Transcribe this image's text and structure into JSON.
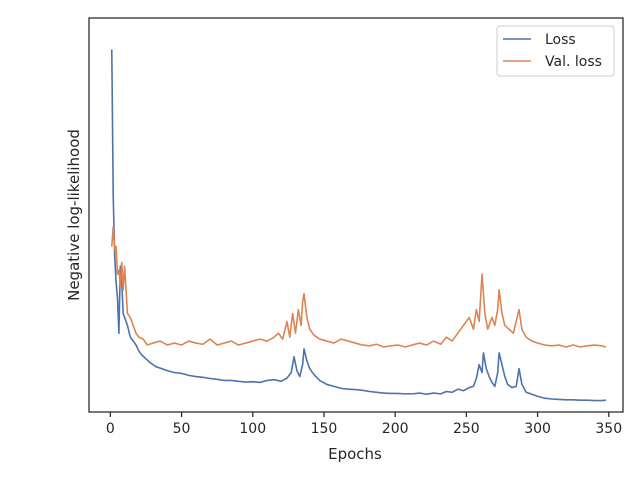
{
  "chart_data": {
    "type": "line",
    "xlabel": "Epochs",
    "ylabel": "Negative log-likelihood",
    "xlim": [
      -15,
      360
    ],
    "ylim": [
      0,
      1
    ],
    "x_ticks": [
      0,
      50,
      100,
      150,
      200,
      250,
      300,
      350
    ],
    "y_tick_labels_shown": false,
    "grid": false,
    "legend_position": "top-right",
    "series": [
      {
        "name": "Loss",
        "color": "#4c72b0",
        "points": [
          [
            1,
            0.92
          ],
          [
            2,
            0.55
          ],
          [
            3,
            0.4
          ],
          [
            4,
            0.33
          ],
          [
            5,
            0.29
          ],
          [
            6,
            0.2
          ],
          [
            7,
            0.37
          ],
          [
            8,
            0.33
          ],
          [
            9,
            0.25
          ],
          [
            10,
            0.24
          ],
          [
            12,
            0.22
          ],
          [
            14,
            0.19
          ],
          [
            16,
            0.18
          ],
          [
            18,
            0.17
          ],
          [
            20,
            0.155
          ],
          [
            22,
            0.145
          ],
          [
            25,
            0.135
          ],
          [
            28,
            0.125
          ],
          [
            32,
            0.115
          ],
          [
            36,
            0.11
          ],
          [
            40,
            0.105
          ],
          [
            45,
            0.1
          ],
          [
            50,
            0.098
          ],
          [
            55,
            0.093
          ],
          [
            60,
            0.09
          ],
          [
            65,
            0.088
          ],
          [
            70,
            0.085
          ],
          [
            75,
            0.083
          ],
          [
            80,
            0.08
          ],
          [
            85,
            0.08
          ],
          [
            90,
            0.078
          ],
          [
            95,
            0.076
          ],
          [
            100,
            0.077
          ],
          [
            105,
            0.075
          ],
          [
            110,
            0.08
          ],
          [
            115,
            0.082
          ],
          [
            120,
            0.078
          ],
          [
            124,
            0.086
          ],
          [
            127,
            0.1
          ],
          [
            129,
            0.14
          ],
          [
            131,
            0.105
          ],
          [
            133,
            0.09
          ],
          [
            135,
            0.12
          ],
          [
            136,
            0.16
          ],
          [
            138,
            0.13
          ],
          [
            140,
            0.11
          ],
          [
            143,
            0.095
          ],
          [
            147,
            0.08
          ],
          [
            152,
            0.07
          ],
          [
            157,
            0.065
          ],
          [
            162,
            0.06
          ],
          [
            167,
            0.058
          ],
          [
            172,
            0.057
          ],
          [
            177,
            0.055
          ],
          [
            182,
            0.052
          ],
          [
            187,
            0.05
          ],
          [
            192,
            0.048
          ],
          [
            197,
            0.047
          ],
          [
            202,
            0.047
          ],
          [
            207,
            0.046
          ],
          [
            212,
            0.046
          ],
          [
            217,
            0.048
          ],
          [
            222,
            0.045
          ],
          [
            227,
            0.048
          ],
          [
            232,
            0.046
          ],
          [
            236,
            0.052
          ],
          [
            240,
            0.05
          ],
          [
            244,
            0.058
          ],
          [
            248,
            0.054
          ],
          [
            252,
            0.062
          ],
          [
            255,
            0.065
          ],
          [
            257,
            0.085
          ],
          [
            259,
            0.12
          ],
          [
            261,
            0.1
          ],
          [
            262,
            0.15
          ],
          [
            264,
            0.11
          ],
          [
            266,
            0.09
          ],
          [
            268,
            0.075
          ],
          [
            270,
            0.065
          ],
          [
            272,
            0.1
          ],
          [
            273,
            0.15
          ],
          [
            275,
            0.12
          ],
          [
            277,
            0.09
          ],
          [
            279,
            0.07
          ],
          [
            282,
            0.062
          ],
          [
            285,
            0.065
          ],
          [
            287,
            0.11
          ],
          [
            289,
            0.07
          ],
          [
            292,
            0.05
          ],
          [
            296,
            0.045
          ],
          [
            300,
            0.04
          ],
          [
            305,
            0.035
          ],
          [
            310,
            0.033
          ],
          [
            315,
            0.032
          ],
          [
            320,
            0.031
          ],
          [
            325,
            0.031
          ],
          [
            330,
            0.03
          ],
          [
            335,
            0.03
          ],
          [
            340,
            0.029
          ],
          [
            345,
            0.029
          ],
          [
            348,
            0.03
          ]
        ]
      },
      {
        "name": "Val. loss",
        "color": "#dd8452",
        "points": [
          [
            1,
            0.42
          ],
          [
            2,
            0.47
          ],
          [
            3,
            0.41
          ],
          [
            4,
            0.42
          ],
          [
            5,
            0.35
          ],
          [
            6,
            0.36
          ],
          [
            7,
            0.32
          ],
          [
            8,
            0.38
          ],
          [
            9,
            0.31
          ],
          [
            10,
            0.37
          ],
          [
            12,
            0.25
          ],
          [
            14,
            0.24
          ],
          [
            16,
            0.22
          ],
          [
            18,
            0.2
          ],
          [
            20,
            0.19
          ],
          [
            23,
            0.185
          ],
          [
            26,
            0.17
          ],
          [
            30,
            0.175
          ],
          [
            35,
            0.18
          ],
          [
            40,
            0.17
          ],
          [
            45,
            0.175
          ],
          [
            50,
            0.17
          ],
          [
            55,
            0.18
          ],
          [
            60,
            0.175
          ],
          [
            65,
            0.172
          ],
          [
            70,
            0.185
          ],
          [
            75,
            0.17
          ],
          [
            80,
            0.175
          ],
          [
            85,
            0.18
          ],
          [
            90,
            0.17
          ],
          [
            95,
            0.175
          ],
          [
            100,
            0.18
          ],
          [
            105,
            0.185
          ],
          [
            110,
            0.18
          ],
          [
            115,
            0.19
          ],
          [
            118,
            0.2
          ],
          [
            121,
            0.185
          ],
          [
            124,
            0.23
          ],
          [
            126,
            0.19
          ],
          [
            128,
            0.25
          ],
          [
            130,
            0.2
          ],
          [
            132,
            0.26
          ],
          [
            134,
            0.22
          ],
          [
            135,
            0.28
          ],
          [
            136,
            0.3
          ],
          [
            138,
            0.24
          ],
          [
            140,
            0.21
          ],
          [
            143,
            0.195
          ],
          [
            147,
            0.185
          ],
          [
            152,
            0.18
          ],
          [
            157,
            0.175
          ],
          [
            162,
            0.185
          ],
          [
            167,
            0.18
          ],
          [
            172,
            0.175
          ],
          [
            177,
            0.17
          ],
          [
            182,
            0.168
          ],
          [
            187,
            0.172
          ],
          [
            192,
            0.165
          ],
          [
            197,
            0.168
          ],
          [
            202,
            0.17
          ],
          [
            207,
            0.165
          ],
          [
            212,
            0.17
          ],
          [
            217,
            0.175
          ],
          [
            222,
            0.17
          ],
          [
            227,
            0.18
          ],
          [
            232,
            0.172
          ],
          [
            236,
            0.19
          ],
          [
            240,
            0.18
          ],
          [
            244,
            0.2
          ],
          [
            248,
            0.22
          ],
          [
            252,
            0.24
          ],
          [
            255,
            0.21
          ],
          [
            257,
            0.26
          ],
          [
            259,
            0.23
          ],
          [
            261,
            0.35
          ],
          [
            263,
            0.25
          ],
          [
            265,
            0.21
          ],
          [
            268,
            0.24
          ],
          [
            270,
            0.22
          ],
          [
            272,
            0.26
          ],
          [
            273,
            0.31
          ],
          [
            275,
            0.25
          ],
          [
            277,
            0.22
          ],
          [
            280,
            0.21
          ],
          [
            283,
            0.2
          ],
          [
            285,
            0.23
          ],
          [
            287,
            0.26
          ],
          [
            289,
            0.21
          ],
          [
            292,
            0.19
          ],
          [
            296,
            0.18
          ],
          [
            300,
            0.175
          ],
          [
            305,
            0.17
          ],
          [
            310,
            0.168
          ],
          [
            315,
            0.17
          ],
          [
            320,
            0.165
          ],
          [
            325,
            0.17
          ],
          [
            330,
            0.165
          ],
          [
            335,
            0.168
          ],
          [
            340,
            0.17
          ],
          [
            345,
            0.168
          ],
          [
            348,
            0.165
          ]
        ]
      }
    ]
  }
}
